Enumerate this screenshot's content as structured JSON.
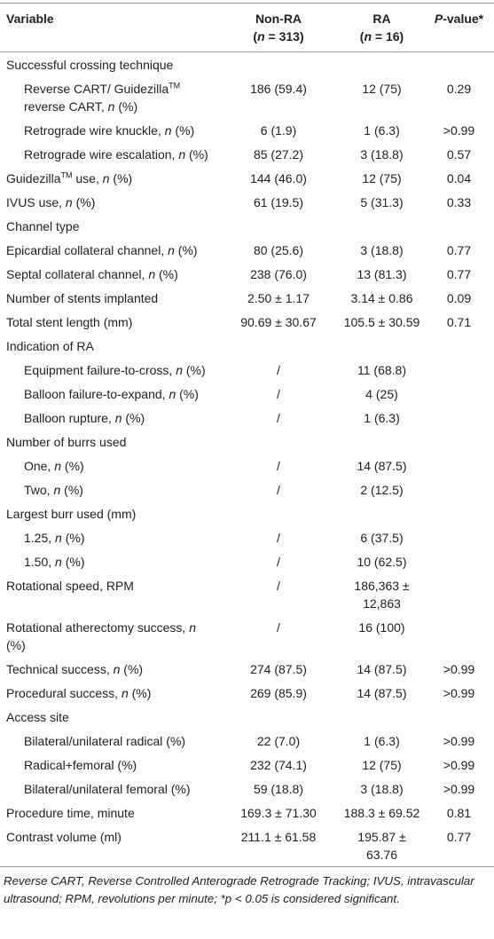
{
  "table": {
    "header": {
      "variable": "Variable",
      "non_ra": [
        "Non-RA",
        "(n = 313)"
      ],
      "ra": [
        "RA",
        "(n = 16)"
      ],
      "p_value": "P-value*"
    },
    "rows": [
      {
        "label": "Successful crossing technique"
      },
      {
        "label": "Reverse CART/ GuidezillaTM reverse CART, n (%)",
        "indent": true,
        "non_ra": "186 (59.4)",
        "ra": "12 (75)",
        "p_value": "0.29"
      },
      {
        "label": "Retrograde wire knuckle, n (%)",
        "indent": true,
        "non_ra": "6 (1.9)",
        "ra": "1 (6.3)",
        "p_value": ">0.99"
      },
      {
        "label": "Retrograde wire escalation, n (%)",
        "indent": true,
        "non_ra": "85 (27.2)",
        "ra": "3 (18.8)",
        "p_value": "0.57"
      },
      {
        "label": "GuidezillaTM use, n (%)",
        "non_ra": "144 (46.0)",
        "ra": "12 (75)",
        "p_value": "0.04"
      },
      {
        "label": "IVUS use, n (%)",
        "non_ra": "61 (19.5)",
        "ra": "5 (31.3)",
        "p_value": "0.33"
      },
      {
        "label": "Channel type"
      },
      {
        "label": "Epicardial collateral channel, n (%)",
        "non_ra": "80 (25.6)",
        "ra": "3 (18.8)",
        "p_value": "0.77"
      },
      {
        "label": "Septal collateral channel, n (%)",
        "non_ra": "238 (76.0)",
        "ra": "13 (81.3)",
        "p_value": "0.77"
      },
      {
        "label": "Number of stents implanted",
        "non_ra": "2.50 ± 1.17",
        "ra": "3.14 ± 0.86",
        "p_value": "0.09"
      },
      {
        "label": "Total stent length (mm)",
        "non_ra": "90.69 ± 30.67",
        "ra": "105.5 ± 30.59",
        "p_value": "0.71"
      },
      {
        "label": "Indication of RA"
      },
      {
        "label": "Equipment failure-to-cross, n (%)",
        "indent": true,
        "non_ra": "/",
        "ra": "11 (68.8)"
      },
      {
        "label": "Balloon failure-to-expand, n (%)",
        "indent": true,
        "non_ra": "/",
        "ra": "4 (25)"
      },
      {
        "label": "Balloon rupture, n (%)",
        "indent": true,
        "non_ra": "/",
        "ra": "1 (6.3)"
      },
      {
        "label": "Number of burrs used"
      },
      {
        "label": "One, n (%)",
        "indent": true,
        "non_ra": "/",
        "ra": "14 (87.5)"
      },
      {
        "label": "Two, n (%)",
        "indent": true,
        "non_ra": "/",
        "ra": "2 (12.5)"
      },
      {
        "label": "Largest burr used (mm)"
      },
      {
        "label": "1.25, n (%)",
        "indent": true,
        "non_ra": "/",
        "ra": "6 (37.5)"
      },
      {
        "label": "1.50, n (%)",
        "indent": true,
        "non_ra": "/",
        "ra": "10 (62.5)"
      },
      {
        "label": "Rotational speed, RPM",
        "non_ra": "/",
        "ra": "186,363 ± 12,863"
      },
      {
        "label": "Rotational atherectomy success, n (%)",
        "non_ra": "/",
        "ra": "16 (100)"
      },
      {
        "label": "Technical success, n (%)",
        "non_ra": "274 (87.5)",
        "ra": "14 (87.5)",
        "p_value": ">0.99"
      },
      {
        "label": "Procedural success, n (%)",
        "non_ra": "269 (85.9)",
        "ra": "14 (87.5)",
        "p_value": ">0.99"
      },
      {
        "label": "Access site"
      },
      {
        "label": "Bilateral/unilateral radical (%)",
        "indent": true,
        "non_ra": "22 (7.0)",
        "ra": "1 (6.3)",
        "p_value": ">0.99"
      },
      {
        "label": "Radical+femoral (%)",
        "indent": true,
        "non_ra": "232 (74.1)",
        "ra": "12 (75)",
        "p_value": ">0.99"
      },
      {
        "label": "Bilateral/unilateral femoral (%)",
        "indent": true,
        "non_ra": "59 (18.8)",
        "ra": "3 (18.8)",
        "p_value": ">0.99"
      },
      {
        "label": "Procedure time, minute",
        "non_ra": "169.3 ± 71.30",
        "ra": "188.3 ± 69.52",
        "p_value": "0.81"
      },
      {
        "label": "Contrast volume (ml)",
        "non_ra": "211.1 ± 61.58",
        "ra": "195.87 ± 63.76",
        "p_value": "0.77"
      }
    ],
    "footnote": "Reverse CART, Reverse Controlled Anterograde Retrograde Tracking; IVUS, intravascular ultrasound; RPM, revolutions per minute; *p < 0.05 is considered significant."
  }
}
